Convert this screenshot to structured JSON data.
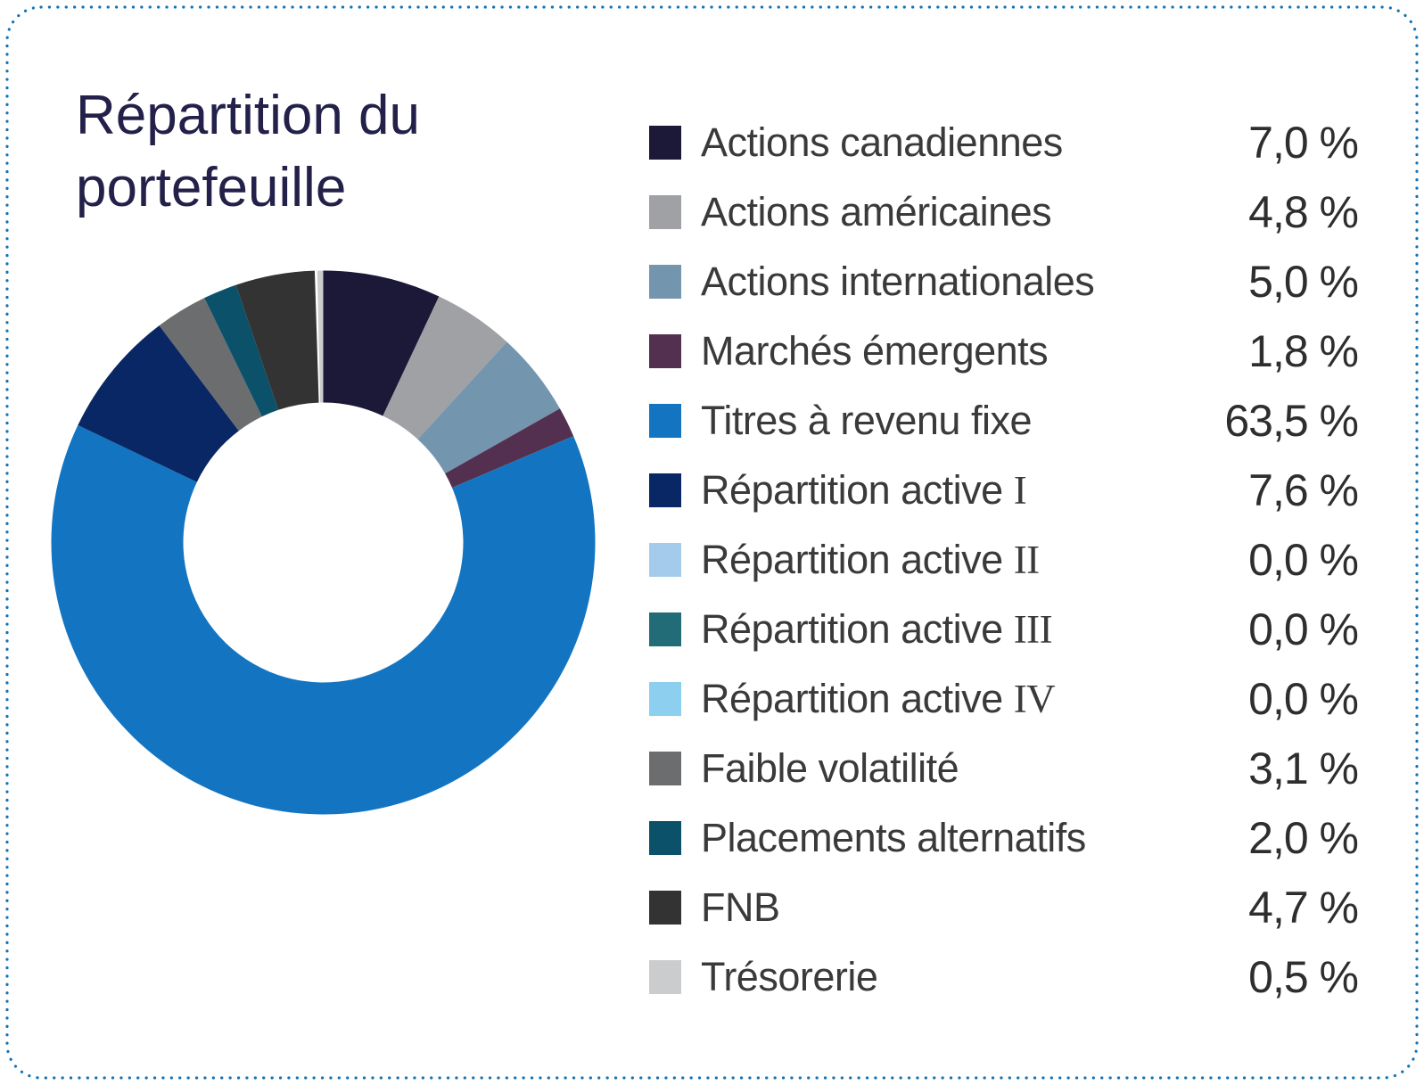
{
  "card": {
    "border_color": "#1172b7",
    "background": "#ffffff"
  },
  "chart_data": {
    "type": "pie",
    "subtype": "donut",
    "title": "Répartition du portefeuille",
    "categories": [
      "Actions canadiennes",
      "Actions américaines",
      "Actions internationales",
      "Marchés émergents",
      "Titres à revenu fixe",
      "Répartition active I",
      "Répartition active II",
      "Répartition active III",
      "Répartition active IV",
      "Faible volatilité",
      "Placements alternatifs",
      "FNB",
      "Trésorerie"
    ],
    "values": [
      7.0,
      4.8,
      5.0,
      1.8,
      63.5,
      7.6,
      0.0,
      0.0,
      0.0,
      3.1,
      2.0,
      4.7,
      0.5
    ],
    "value_labels": [
      "7,0 %",
      "4,8 %",
      "5,0 %",
      "1,8 %",
      "63,5 %",
      "7,6 %",
      "0,0 %",
      "0,0 %",
      "0,0 %",
      "3,1 %",
      "2,0 %",
      "4,7 %",
      "0,5 %"
    ],
    "colors": [
      "#1b1838",
      "#9fa1a4",
      "#7396ae",
      "#543050",
      "#1375c1",
      "#0a2765",
      "#a5cbec",
      "#216c76",
      "#8ccfef",
      "#6c6d6f",
      "#0b516a",
      "#333333",
      "#cbcccd"
    ],
    "start_angle_deg": 0,
    "direction": "clockwise",
    "inner_radius_ratio": 0.515,
    "legend_position": "right",
    "total": 100.0
  }
}
